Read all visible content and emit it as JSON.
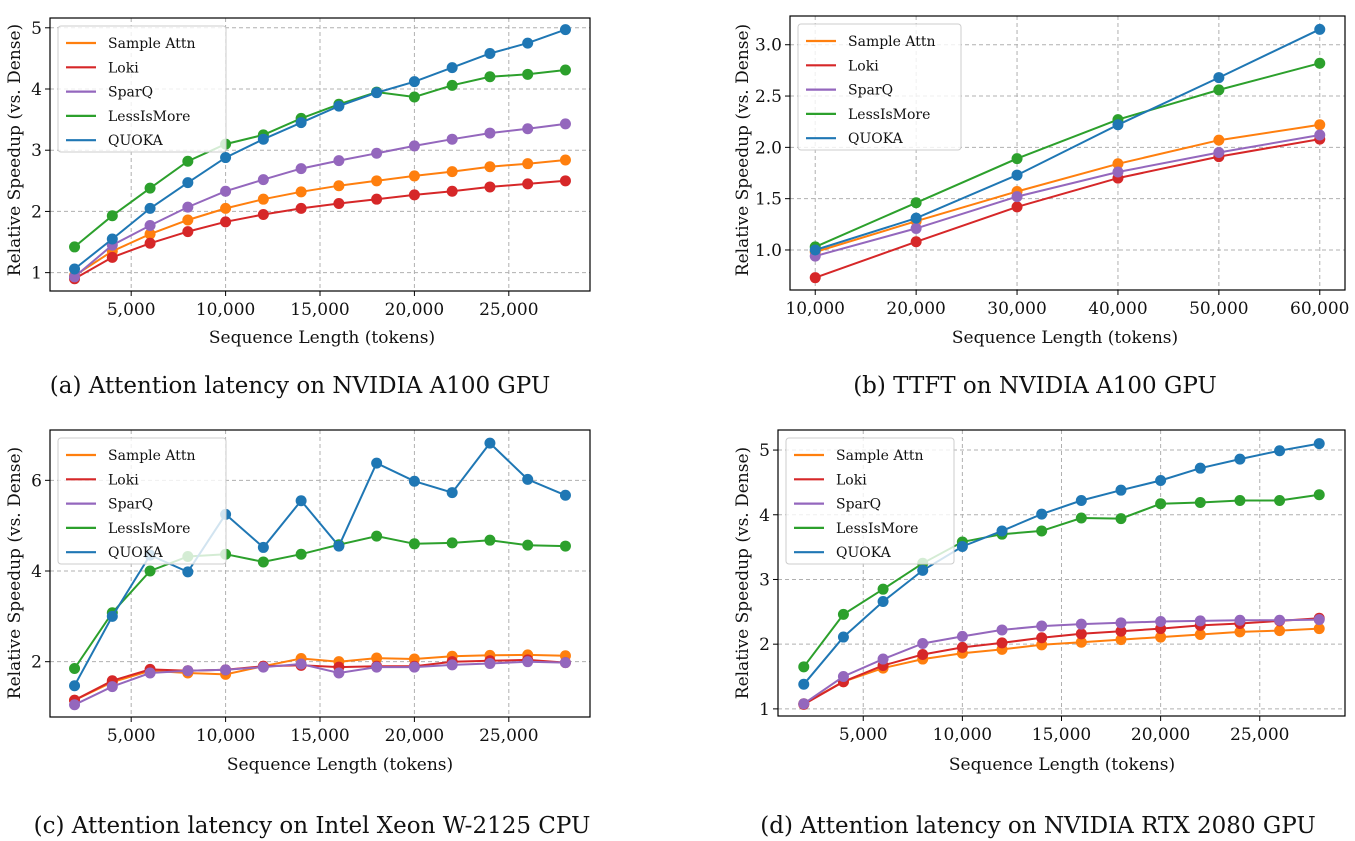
{
  "chart_data": [
    {
      "type": "line",
      "caption": "(a) Attention latency on NVIDIA A100 GPU",
      "xlabel": "Sequence Length (tokens)",
      "ylabel": "Relative Speedup (vs. Dense)",
      "xlim": [
        700,
        29300
      ],
      "ylim": [
        0.7,
        5.16
      ],
      "xticks": [
        5000,
        10000,
        15000,
        20000,
        25000
      ],
      "xtick_labels": [
        "5,000",
        "10,000",
        "15,000",
        "20,000",
        "25,000"
      ],
      "yticks": [
        1,
        2,
        3,
        4,
        5
      ],
      "ytick_labels": [
        "1",
        "2",
        "3",
        "4",
        "5"
      ],
      "grid": true,
      "legend": "upper left",
      "x": [
        2000,
        4000,
        6000,
        8000,
        10000,
        12000,
        14000,
        16000,
        18000,
        20000,
        22000,
        24000,
        26000,
        28000
      ],
      "series": [
        {
          "name": "Sample Attn",
          "color": "#ff7f0e",
          "values": [
            0.95,
            1.35,
            1.63,
            1.86,
            2.05,
            2.2,
            2.32,
            2.42,
            2.5,
            2.58,
            2.65,
            2.73,
            2.78,
            2.84
          ]
        },
        {
          "name": "Loki",
          "color": "#d62728",
          "values": [
            0.9,
            1.25,
            1.48,
            1.67,
            1.83,
            1.95,
            2.05,
            2.13,
            2.2,
            2.27,
            2.33,
            2.4,
            2.45,
            2.5
          ]
        },
        {
          "name": "SparQ",
          "color": "#9467bd",
          "values": [
            0.93,
            1.45,
            1.77,
            2.07,
            2.33,
            2.52,
            2.7,
            2.83,
            2.95,
            3.07,
            3.18,
            3.28,
            3.35,
            3.43
          ]
        },
        {
          "name": "LessIsMore",
          "color": "#2ca02c",
          "values": [
            1.42,
            1.93,
            2.38,
            2.82,
            3.1,
            3.25,
            3.52,
            3.75,
            3.95,
            3.87,
            4.06,
            4.2,
            4.24,
            4.31
          ]
        },
        {
          "name": "QUOKA",
          "color": "#1f77b4",
          "values": [
            1.06,
            1.55,
            2.05,
            2.47,
            2.88,
            3.18,
            3.45,
            3.72,
            3.94,
            4.12,
            4.35,
            4.58,
            4.75,
            4.97
          ]
        }
      ]
    },
    {
      "type": "line",
      "caption": "(b) TTFT on NVIDIA A100 GPU",
      "xlabel": "Sequence Length (tokens)",
      "ylabel": "Relative Speedup (vs. Dense)",
      "xlim": [
        7500,
        62500
      ],
      "ylim": [
        0.61,
        3.28
      ],
      "xticks": [
        10000,
        20000,
        30000,
        40000,
        50000,
        60000
      ],
      "xtick_labels": [
        "10,000",
        "20,000",
        "30,000",
        "40,000",
        "50,000",
        "60,000"
      ],
      "yticks": [
        1.0,
        1.5,
        2.0,
        2.5,
        3.0
      ],
      "ytick_labels": [
        "1.0",
        "1.5",
        "2.0",
        "2.5",
        "3.0"
      ],
      "grid": true,
      "legend": "upper left",
      "x": [
        10000,
        20000,
        30000,
        40000,
        50000,
        60000
      ],
      "series": [
        {
          "name": "Sample Attn",
          "color": "#ff7f0e",
          "values": [
            0.98,
            1.28,
            1.57,
            1.84,
            2.07,
            2.22
          ]
        },
        {
          "name": "Loki",
          "color": "#d62728",
          "values": [
            0.73,
            1.08,
            1.42,
            1.7,
            1.91,
            2.08
          ]
        },
        {
          "name": "SparQ",
          "color": "#9467bd",
          "values": [
            0.94,
            1.21,
            1.52,
            1.76,
            1.95,
            2.12
          ]
        },
        {
          "name": "LessIsMore",
          "color": "#2ca02c",
          "values": [
            1.03,
            1.46,
            1.89,
            2.27,
            2.56,
            2.82
          ]
        },
        {
          "name": "QUOKA",
          "color": "#1f77b4",
          "values": [
            1.0,
            1.31,
            1.73,
            2.22,
            2.68,
            3.15
          ]
        }
      ]
    },
    {
      "type": "line",
      "caption": "(c) Attention latency on Intel Xeon W-2125 CPU",
      "xlabel": "Sequence Length (tokens)",
      "ylabel": "Relative Speedup (vs. Dense)",
      "xlim": [
        700,
        29300
      ],
      "ylim": [
        0.78,
        7.11
      ],
      "xticks": [
        5000,
        10000,
        15000,
        20000,
        25000
      ],
      "xtick_labels": [
        "5,000",
        "10,000",
        "15,000",
        "20,000",
        "25,000"
      ],
      "yticks": [
        2,
        4,
        6
      ],
      "ytick_labels": [
        "2",
        "4",
        "6"
      ],
      "grid": true,
      "legend": "upper left",
      "x": [
        2000,
        4000,
        6000,
        8000,
        10000,
        12000,
        14000,
        16000,
        18000,
        20000,
        22000,
        24000,
        26000,
        28000
      ],
      "series": [
        {
          "name": "Sample Attn",
          "color": "#ff7f0e",
          "values": [
            1.15,
            1.55,
            1.8,
            1.75,
            1.72,
            1.9,
            2.07,
            2.0,
            2.08,
            2.06,
            2.12,
            2.14,
            2.15,
            2.13
          ]
        },
        {
          "name": "Loki",
          "color": "#d62728",
          "values": [
            1.15,
            1.58,
            1.83,
            1.8,
            1.82,
            1.9,
            1.92,
            1.88,
            1.9,
            1.9,
            2.0,
            2.02,
            2.04,
            1.98
          ]
        },
        {
          "name": "SparQ",
          "color": "#9467bd",
          "values": [
            1.05,
            1.45,
            1.75,
            1.8,
            1.82,
            1.88,
            1.95,
            1.75,
            1.88,
            1.88,
            1.93,
            1.96,
            2.0,
            1.98
          ]
        },
        {
          "name": "LessIsMore",
          "color": "#2ca02c",
          "values": [
            1.85,
            3.08,
            4.0,
            4.32,
            4.37,
            4.2,
            4.37,
            4.58,
            4.77,
            4.6,
            4.62,
            4.68,
            4.57,
            4.55
          ]
        },
        {
          "name": "QUOKA",
          "color": "#1f77b4",
          "values": [
            1.47,
            3.0,
            4.35,
            3.98,
            5.25,
            4.52,
            5.55,
            4.55,
            6.38,
            5.98,
            5.73,
            6.82,
            6.02,
            5.67
          ]
        }
      ]
    },
    {
      "type": "line",
      "caption": "(d) Attention latency on NVIDIA RTX 2080 GPU",
      "xlabel": "Sequence Length (tokens)",
      "ylabel": "Relative Speedup (vs. Dense)",
      "xlim": [
        700,
        29300
      ],
      "ylim": [
        0.89,
        5.31
      ],
      "xticks": [
        5000,
        10000,
        15000,
        20000,
        25000
      ],
      "xtick_labels": [
        "5,000",
        "10,000",
        "15,000",
        "20,000",
        "25,000"
      ],
      "yticks": [
        1,
        2,
        3,
        4,
        5
      ],
      "ytick_labels": [
        "1",
        "2",
        "3",
        "4",
        "5"
      ],
      "grid": true,
      "legend": "upper left",
      "x": [
        2000,
        4000,
        6000,
        8000,
        10000,
        12000,
        14000,
        16000,
        18000,
        20000,
        22000,
        24000,
        26000,
        28000
      ],
      "series": [
        {
          "name": "Sample Attn",
          "color": "#ff7f0e",
          "values": [
            1.08,
            1.42,
            1.63,
            1.77,
            1.86,
            1.92,
            1.99,
            2.03,
            2.07,
            2.11,
            2.15,
            2.19,
            2.21,
            2.24
          ]
        },
        {
          "name": "Loki",
          "color": "#d62728",
          "values": [
            1.07,
            1.42,
            1.67,
            1.84,
            1.95,
            2.02,
            2.1,
            2.16,
            2.2,
            2.24,
            2.29,
            2.32,
            2.36,
            2.4
          ]
        },
        {
          "name": "SparQ",
          "color": "#9467bd",
          "values": [
            1.08,
            1.5,
            1.77,
            2.01,
            2.12,
            2.22,
            2.28,
            2.31,
            2.33,
            2.35,
            2.36,
            2.37,
            2.37,
            2.38
          ]
        },
        {
          "name": "LessIsMore",
          "color": "#2ca02c",
          "values": [
            1.65,
            2.46,
            2.85,
            3.25,
            3.58,
            3.7,
            3.75,
            3.95,
            3.94,
            4.17,
            4.19,
            4.22,
            4.22,
            4.31
          ]
        },
        {
          "name": "QUOKA",
          "color": "#1f77b4",
          "values": [
            1.38,
            2.11,
            2.66,
            3.14,
            3.51,
            3.75,
            4.01,
            4.22,
            4.38,
            4.53,
            4.72,
            4.86,
            4.99,
            5.1
          ]
        }
      ]
    }
  ]
}
